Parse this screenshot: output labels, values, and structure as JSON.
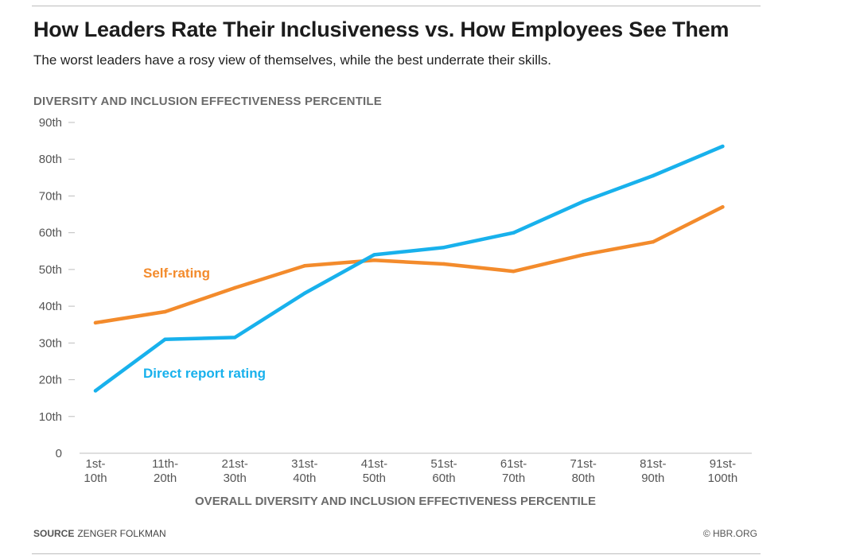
{
  "header": {
    "title": "How Leaders Rate Their Inclusiveness vs. How Employees See Them",
    "subtitle": "The worst leaders have a rosy view of themselves, while the best underrate their skills."
  },
  "footer": {
    "source_label": "SOURCE",
    "source_text": "ZENGER FOLKMAN",
    "credit": "© HBR.ORG"
  },
  "colors": {
    "self": "#f38b2c",
    "direct": "#18b1ec",
    "axis_text": "#555555",
    "axis_line": "#bdbdbd"
  },
  "chart_data": {
    "type": "line",
    "title": "How Leaders Rate Their Inclusiveness vs. How Employees See Them",
    "ylabel": "DIVERSITY AND INCLUSION EFFECTIVENESS PERCENTILE",
    "xlabel": "OVERALL DIVERSITY AND INCLUSION EFFECTIVENESS PERCENTILE",
    "ylim": [
      0,
      90
    ],
    "yticks": [
      {
        "value": 0,
        "label": "0"
      },
      {
        "value": 10,
        "label": "10th"
      },
      {
        "value": 20,
        "label": "20th"
      },
      {
        "value": 30,
        "label": "30th"
      },
      {
        "value": 40,
        "label": "40th"
      },
      {
        "value": 50,
        "label": "50th"
      },
      {
        "value": 60,
        "label": "60th"
      },
      {
        "value": 70,
        "label": "70th"
      },
      {
        "value": 80,
        "label": "80th"
      },
      {
        "value": 90,
        "label": "90th"
      }
    ],
    "categories": [
      [
        "1st-",
        "10th"
      ],
      [
        "11th-",
        "20th"
      ],
      [
        "21st-",
        "30th"
      ],
      [
        "31st-",
        "40th"
      ],
      [
        "41st-",
        "50th"
      ],
      [
        "51st-",
        "60th"
      ],
      [
        "61st-",
        "70th"
      ],
      [
        "71st-",
        "80th"
      ],
      [
        "81st-",
        "90th"
      ],
      [
        "91st-",
        "100th"
      ]
    ],
    "grid": false,
    "series": [
      {
        "name": "Self-rating",
        "color_key": "self",
        "values": [
          35.5,
          38.5,
          45,
          51,
          52.5,
          51.5,
          49.5,
          54,
          57.5,
          67
        ]
      },
      {
        "name": "Direct report rating",
        "color_key": "direct",
        "values": [
          17,
          31,
          31.5,
          43.5,
          54,
          56,
          60,
          68.5,
          75.5,
          83.5
        ]
      }
    ],
    "annotations": [
      {
        "text": "Self-rating",
        "series": 0,
        "anchor_category": 1
      },
      {
        "text": "Direct report rating",
        "series": 1,
        "anchor_category": 1
      }
    ]
  }
}
